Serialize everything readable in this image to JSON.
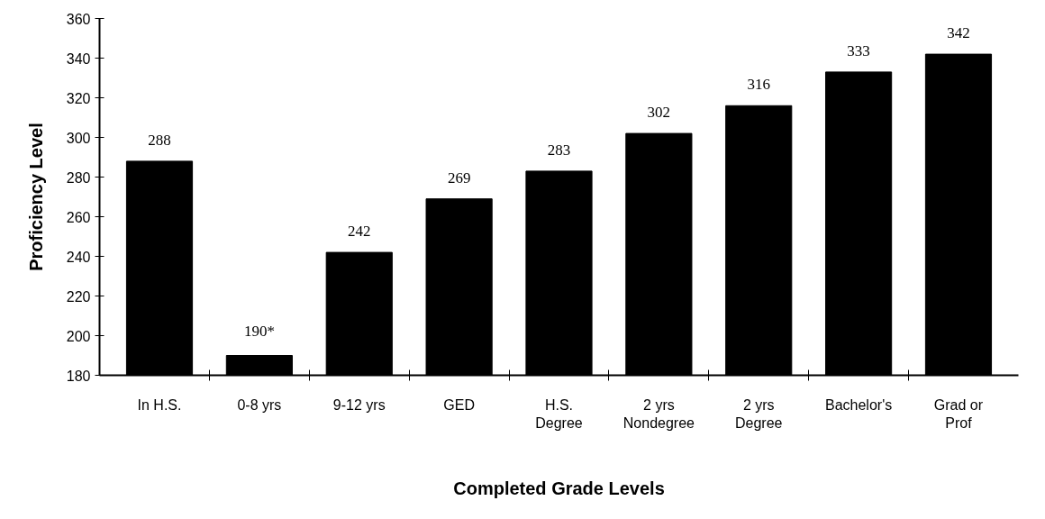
{
  "chart_data": {
    "type": "bar",
    "xlabel": "Completed Grade Levels",
    "ylabel": "Proficiency Level",
    "categories": [
      "In H.S.",
      "0-8 yrs",
      "9-12 yrs",
      "GED",
      "H.S.\nDegree",
      "2 yrs\nNondegree",
      "2 yrs\nDegree",
      "Bachelor's",
      "Grad or\nProf"
    ],
    "values": [
      288,
      190,
      242,
      269,
      283,
      302,
      316,
      333,
      342
    ],
    "value_labels": [
      "288",
      "190*",
      "242",
      "269",
      "283",
      "302",
      "316",
      "333",
      "342"
    ],
    "color": "#000000",
    "ylim": [
      180,
      360
    ],
    "yticks": [
      180,
      200,
      220,
      240,
      260,
      280,
      300,
      320,
      340,
      360
    ],
    "grid": false
  }
}
